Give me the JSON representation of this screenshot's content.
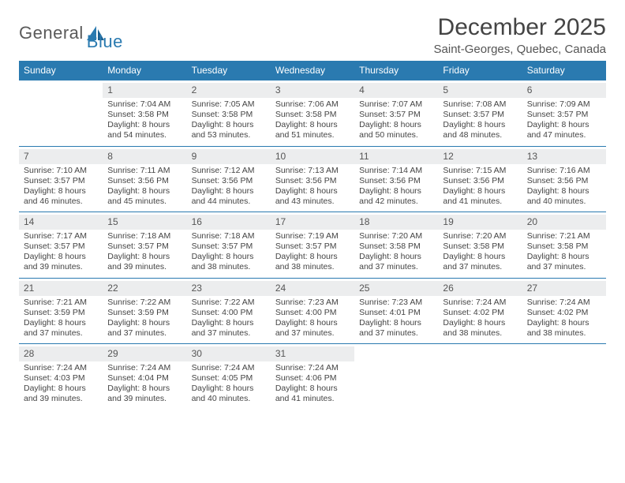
{
  "brand": {
    "part1": "General",
    "part2": "Blue"
  },
  "title": "December 2025",
  "location": "Saint-Georges, Quebec, Canada",
  "colors": {
    "accent": "#2a7ab0",
    "dow_bg": "#2a7ab0",
    "dow_text": "#ffffff",
    "daynum_bg": "#ecedee",
    "text": "#444444",
    "background": "#ffffff"
  },
  "day_names": [
    "Sunday",
    "Monday",
    "Tuesday",
    "Wednesday",
    "Thursday",
    "Friday",
    "Saturday"
  ],
  "weeks": [
    [
      null,
      {
        "n": "1",
        "sunrise": "7:04 AM",
        "sunset": "3:58 PM",
        "daylight": "8 hours and 54 minutes."
      },
      {
        "n": "2",
        "sunrise": "7:05 AM",
        "sunset": "3:58 PM",
        "daylight": "8 hours and 53 minutes."
      },
      {
        "n": "3",
        "sunrise": "7:06 AM",
        "sunset": "3:58 PM",
        "daylight": "8 hours and 51 minutes."
      },
      {
        "n": "4",
        "sunrise": "7:07 AM",
        "sunset": "3:57 PM",
        "daylight": "8 hours and 50 minutes."
      },
      {
        "n": "5",
        "sunrise": "7:08 AM",
        "sunset": "3:57 PM",
        "daylight": "8 hours and 48 minutes."
      },
      {
        "n": "6",
        "sunrise": "7:09 AM",
        "sunset": "3:57 PM",
        "daylight": "8 hours and 47 minutes."
      }
    ],
    [
      {
        "n": "7",
        "sunrise": "7:10 AM",
        "sunset": "3:57 PM",
        "daylight": "8 hours and 46 minutes."
      },
      {
        "n": "8",
        "sunrise": "7:11 AM",
        "sunset": "3:56 PM",
        "daylight": "8 hours and 45 minutes."
      },
      {
        "n": "9",
        "sunrise": "7:12 AM",
        "sunset": "3:56 PM",
        "daylight": "8 hours and 44 minutes."
      },
      {
        "n": "10",
        "sunrise": "7:13 AM",
        "sunset": "3:56 PM",
        "daylight": "8 hours and 43 minutes."
      },
      {
        "n": "11",
        "sunrise": "7:14 AM",
        "sunset": "3:56 PM",
        "daylight": "8 hours and 42 minutes."
      },
      {
        "n": "12",
        "sunrise": "7:15 AM",
        "sunset": "3:56 PM",
        "daylight": "8 hours and 41 minutes."
      },
      {
        "n": "13",
        "sunrise": "7:16 AM",
        "sunset": "3:56 PM",
        "daylight": "8 hours and 40 minutes."
      }
    ],
    [
      {
        "n": "14",
        "sunrise": "7:17 AM",
        "sunset": "3:57 PM",
        "daylight": "8 hours and 39 minutes."
      },
      {
        "n": "15",
        "sunrise": "7:18 AM",
        "sunset": "3:57 PM",
        "daylight": "8 hours and 39 minutes."
      },
      {
        "n": "16",
        "sunrise": "7:18 AM",
        "sunset": "3:57 PM",
        "daylight": "8 hours and 38 minutes."
      },
      {
        "n": "17",
        "sunrise": "7:19 AM",
        "sunset": "3:57 PM",
        "daylight": "8 hours and 38 minutes."
      },
      {
        "n": "18",
        "sunrise": "7:20 AM",
        "sunset": "3:58 PM",
        "daylight": "8 hours and 37 minutes."
      },
      {
        "n": "19",
        "sunrise": "7:20 AM",
        "sunset": "3:58 PM",
        "daylight": "8 hours and 37 minutes."
      },
      {
        "n": "20",
        "sunrise": "7:21 AM",
        "sunset": "3:58 PM",
        "daylight": "8 hours and 37 minutes."
      }
    ],
    [
      {
        "n": "21",
        "sunrise": "7:21 AM",
        "sunset": "3:59 PM",
        "daylight": "8 hours and 37 minutes."
      },
      {
        "n": "22",
        "sunrise": "7:22 AM",
        "sunset": "3:59 PM",
        "daylight": "8 hours and 37 minutes."
      },
      {
        "n": "23",
        "sunrise": "7:22 AM",
        "sunset": "4:00 PM",
        "daylight": "8 hours and 37 minutes."
      },
      {
        "n": "24",
        "sunrise": "7:23 AM",
        "sunset": "4:00 PM",
        "daylight": "8 hours and 37 minutes."
      },
      {
        "n": "25",
        "sunrise": "7:23 AM",
        "sunset": "4:01 PM",
        "daylight": "8 hours and 37 minutes."
      },
      {
        "n": "26",
        "sunrise": "7:24 AM",
        "sunset": "4:02 PM",
        "daylight": "8 hours and 38 minutes."
      },
      {
        "n": "27",
        "sunrise": "7:24 AM",
        "sunset": "4:02 PM",
        "daylight": "8 hours and 38 minutes."
      }
    ],
    [
      {
        "n": "28",
        "sunrise": "7:24 AM",
        "sunset": "4:03 PM",
        "daylight": "8 hours and 39 minutes."
      },
      {
        "n": "29",
        "sunrise": "7:24 AM",
        "sunset": "4:04 PM",
        "daylight": "8 hours and 39 minutes."
      },
      {
        "n": "30",
        "sunrise": "7:24 AM",
        "sunset": "4:05 PM",
        "daylight": "8 hours and 40 minutes."
      },
      {
        "n": "31",
        "sunrise": "7:24 AM",
        "sunset": "4:06 PM",
        "daylight": "8 hours and 41 minutes."
      },
      null,
      null,
      null
    ]
  ],
  "labels": {
    "sunrise": "Sunrise:",
    "sunset": "Sunset:",
    "daylight": "Daylight:"
  }
}
